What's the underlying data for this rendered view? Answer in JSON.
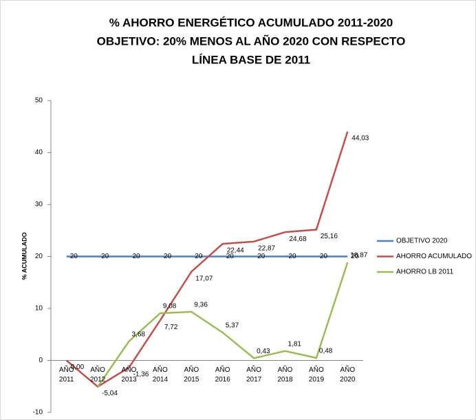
{
  "chart_data": {
    "type": "line",
    "title": [
      "% AHORRO ENERGÉTICO ACUMULADO 2011-2020",
      "OBJETIVO: 20% MENOS AL AÑO 2020 CON RESPECTO",
      "LÍNEA BASE DE 2011"
    ],
    "y_label": "% ACUMULADO",
    "categories": [
      "AÑO 2011",
      "AÑO 2012",
      "AÑO 2013",
      "AÑO 2014",
      "AÑO 2015",
      "AÑO 2016",
      "AÑO 2017",
      "AÑO 2018",
      "AÑO 2019",
      "AÑO 2020"
    ],
    "series": [
      {
        "name": "OBJETIVO 2020",
        "color": "#4f81bd",
        "values": [
          20,
          20,
          20,
          20,
          20,
          20,
          20,
          20,
          20,
          20
        ]
      },
      {
        "name": "AHORRO ACUMULADO",
        "color": "#c0504d",
        "values": [
          0.0,
          -5.04,
          -1.36,
          7.72,
          17.07,
          22.44,
          22.87,
          24.68,
          25.16,
          44.03
        ],
        "value_labels": [
          "0,00",
          "-5,04",
          "-1,36",
          "7,72",
          "17,07",
          "22,44",
          "22,87",
          "24,68",
          "25,16",
          "44,03"
        ]
      },
      {
        "name": "AHORRO LB 2011",
        "color": "#9bbb59",
        "values": [
          null,
          -5.04,
          3.68,
          9.08,
          9.36,
          5.37,
          0.43,
          1.81,
          0.48,
          18.87
        ],
        "value_labels": [
          null,
          null,
          "3,68",
          "9,08",
          "9,36",
          "5,37",
          "0,43",
          "1,81",
          "0,48",
          "18,87"
        ]
      }
    ],
    "ylim": [
      -10,
      50
    ],
    "yticks": [
      -10,
      0,
      10,
      20,
      30,
      40,
      50
    ],
    "grid": false,
    "legend": "right"
  }
}
